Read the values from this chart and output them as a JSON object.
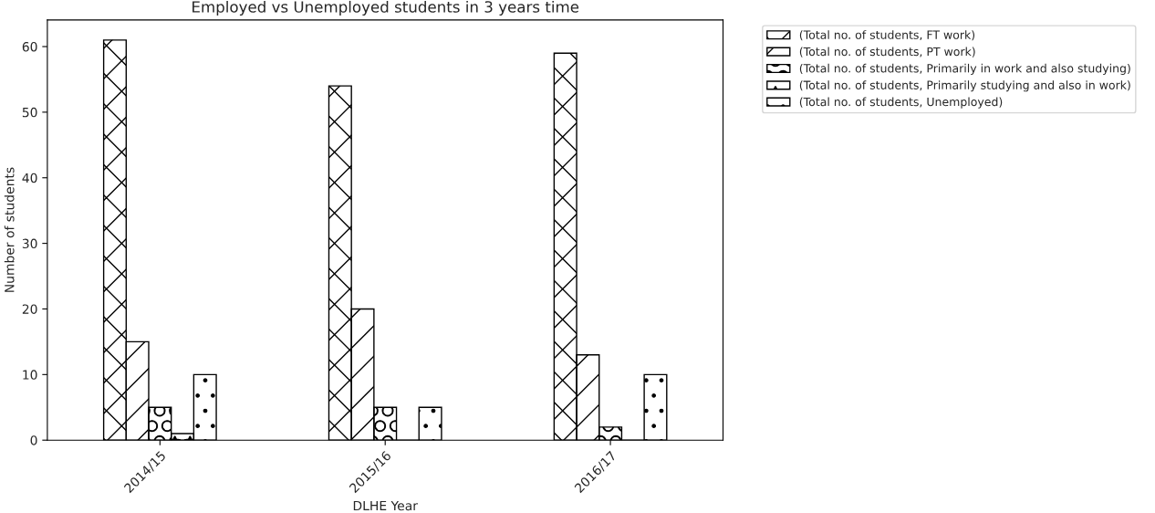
{
  "chart_data": {
    "type": "bar",
    "title": "Employed vs Unemployed students in 3 years time",
    "xlabel": "DLHE Year",
    "ylabel": "Number of students",
    "categories": [
      "2014/15",
      "2015/16",
      "2016/17"
    ],
    "series": [
      {
        "name": "(Total no. of students, FT work)",
        "color": "#000000",
        "values": [
          61,
          54,
          59
        ]
      },
      {
        "name": "(Total no. of students, PT work)",
        "color": "#000000",
        "values": [
          15,
          20,
          13
        ]
      },
      {
        "name": "(Total no. of students, Primarily in work and also studying)",
        "color": "#000000",
        "values": [
          5,
          5,
          2
        ]
      },
      {
        "name": "(Total no. of students, Primarily studying and also in work)",
        "color": "#000000",
        "values": [
          1,
          0,
          0
        ]
      },
      {
        "name": "(Total no. of students, Unemployed)",
        "color": "#000000",
        "values": [
          10,
          5,
          10
        ]
      }
    ],
    "ylim": [
      0,
      64.05
    ],
    "yticks": [
      0,
      10,
      20,
      30,
      40,
      50,
      60
    ],
    "grid": false,
    "legend": "top right"
  }
}
